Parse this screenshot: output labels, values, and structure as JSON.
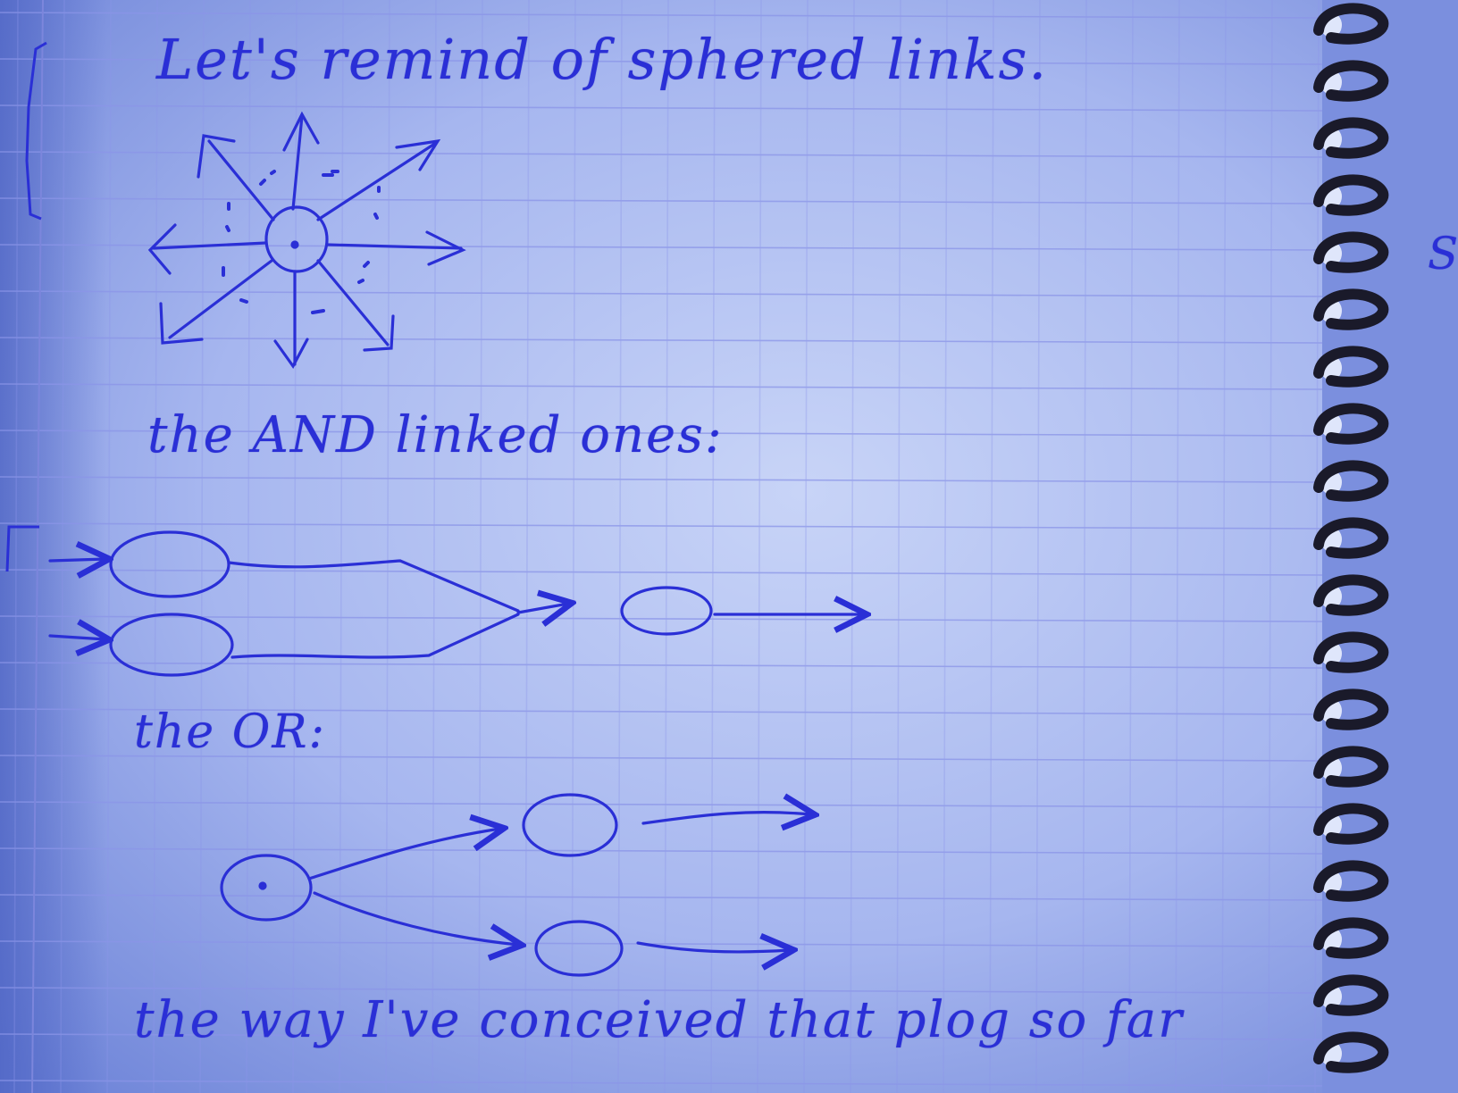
{
  "notebook": {
    "lines": {
      "line1": "Let's remind of sphered links.",
      "line2": "the AND linked ones:",
      "line3": "the OR:",
      "line4": "the way I've conceived that plog so far"
    },
    "margin_note": "S"
  },
  "colors": {
    "paper": "#8fa3ea",
    "paper_light": "#c5d2f5",
    "grid": "#8b95e8",
    "ink": "#2a2fd6",
    "spiral": "#1a1a2a"
  }
}
